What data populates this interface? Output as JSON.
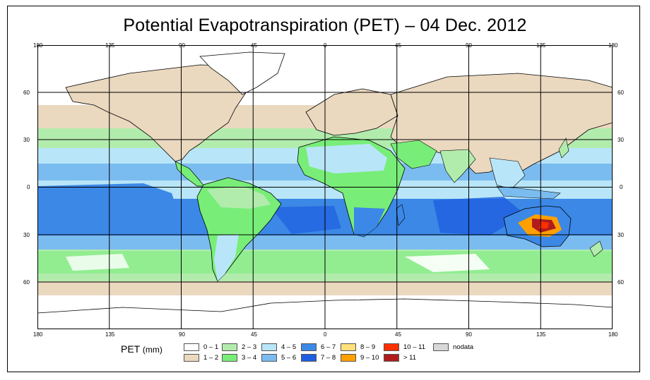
{
  "title": "Potential Evapotranspiration (PET) – 04 Dec. 2012",
  "axes": {
    "lon_labels": [
      "180",
      "135",
      "90",
      "45",
      "0",
      "45",
      "90",
      "135",
      "180"
    ],
    "lat_labels": [
      "60",
      "30",
      "0",
      "30",
      "60"
    ]
  },
  "legend": {
    "label": "PET",
    "unit": "(mm)",
    "items": [
      {
        "label": "0 – 1",
        "color": "#ffffff"
      },
      {
        "label": "1 – 2",
        "color": "#ead8bf"
      },
      {
        "label": "2 – 3",
        "color": "#b2ecad"
      },
      {
        "label": "3 – 4",
        "color": "#78ee78"
      },
      {
        "label": "4 – 5",
        "color": "#b8e6f8"
      },
      {
        "label": "5 – 6",
        "color": "#7bbcf0"
      },
      {
        "label": "6 – 7",
        "color": "#3c88e6"
      },
      {
        "label": "7 – 8",
        "color": "#1e5fe0"
      },
      {
        "label": "8 – 9",
        "color": "#ffe07a"
      },
      {
        "label": "9 – 10",
        "color": "#ffa000"
      },
      {
        "label": "10 – 11",
        "color": "#ff3000"
      },
      {
        "label": "> 11",
        "color": "#b01c1c"
      },
      {
        "label": "nodata",
        "color": "#d8d8d8"
      }
    ]
  }
}
